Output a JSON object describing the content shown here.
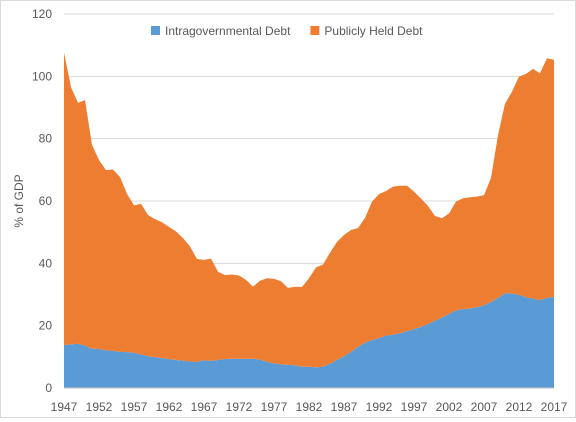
{
  "chart_data": {
    "type": "area",
    "stacked": true,
    "title": "",
    "xlabel": "",
    "ylabel": "% of GDP",
    "ylim": [
      0,
      120
    ],
    "y_ticks": [
      0,
      20,
      40,
      60,
      80,
      100,
      120
    ],
    "x_ticks": [
      1947,
      1952,
      1957,
      1962,
      1967,
      1972,
      1977,
      1982,
      1987,
      1992,
      1997,
      2002,
      2007,
      2012,
      2017
    ],
    "grid": "horizontal",
    "legend_position": "top",
    "x": [
      1947,
      1948,
      1949,
      1950,
      1951,
      1952,
      1953,
      1954,
      1955,
      1956,
      1957,
      1958,
      1959,
      1960,
      1961,
      1962,
      1963,
      1964,
      1965,
      1966,
      1967,
      1968,
      1969,
      1970,
      1971,
      1972,
      1973,
      1974,
      1975,
      1976,
      1977,
      1978,
      1979,
      1980,
      1981,
      1982,
      1983,
      1984,
      1985,
      1986,
      1987,
      1988,
      1989,
      1990,
      1991,
      1992,
      1993,
      1994,
      1995,
      1996,
      1997,
      1998,
      1999,
      2000,
      2001,
      2002,
      2003,
      2004,
      2005,
      2006,
      2007,
      2008,
      2009,
      2010,
      2011,
      2012,
      2013,
      2014,
      2015,
      2016,
      2017
    ],
    "series": [
      {
        "name": "Intragovernmental Debt",
        "color": "#5b9bd5",
        "values": [
          13.8,
          14.0,
          14.2,
          13.6,
          12.6,
          12.5,
          12.1,
          11.9,
          11.6,
          11.5,
          11.3,
          10.8,
          10.2,
          9.9,
          9.6,
          9.3,
          9.0,
          8.8,
          8.5,
          8.4,
          8.9,
          8.7,
          9.0,
          9.3,
          9.4,
          9.4,
          9.4,
          9.4,
          9.1,
          8.4,
          7.9,
          7.6,
          7.4,
          7.3,
          6.8,
          6.8,
          6.6,
          6.8,
          7.8,
          9.0,
          10.2,
          11.6,
          13.2,
          14.5,
          15.4,
          16.0,
          16.8,
          17.1,
          17.6,
          18.2,
          18.9,
          19.6,
          20.5,
          21.6,
          22.6,
          23.8,
          24.9,
          25.3,
          25.5,
          25.9,
          26.5,
          27.6,
          28.9,
          30.4,
          30.3,
          29.9,
          29.1,
          28.7,
          28.2,
          28.9,
          29.2
        ]
      },
      {
        "name": "Publicly Held Debt",
        "color": "#ed7d31",
        "values": [
          93.8,
          82.5,
          77.3,
          78.8,
          65.4,
          60.6,
          57.8,
          58.2,
          56.1,
          50.8,
          47.3,
          48.3,
          45.3,
          44.3,
          43.6,
          42.4,
          41.2,
          39.3,
          36.9,
          33.0,
          32.2,
          32.8,
          28.3,
          26.9,
          27.0,
          26.7,
          25.3,
          23.1,
          25.3,
          26.8,
          27.1,
          26.7,
          24.7,
          25.2,
          25.6,
          28.4,
          32.1,
          32.8,
          35.6,
          37.9,
          38.9,
          39.1,
          38.1,
          40.1,
          44.4,
          46.2,
          46.4,
          47.5,
          47.3,
          46.7,
          44.1,
          41.2,
          37.9,
          33.6,
          31.9,
          32.2,
          34.9,
          35.6,
          35.7,
          35.5,
          35.4,
          39.8,
          52.2,
          60.8,
          64.8,
          70.0,
          71.7,
          73.7,
          72.8,
          76.9,
          76.1
        ]
      }
    ]
  }
}
